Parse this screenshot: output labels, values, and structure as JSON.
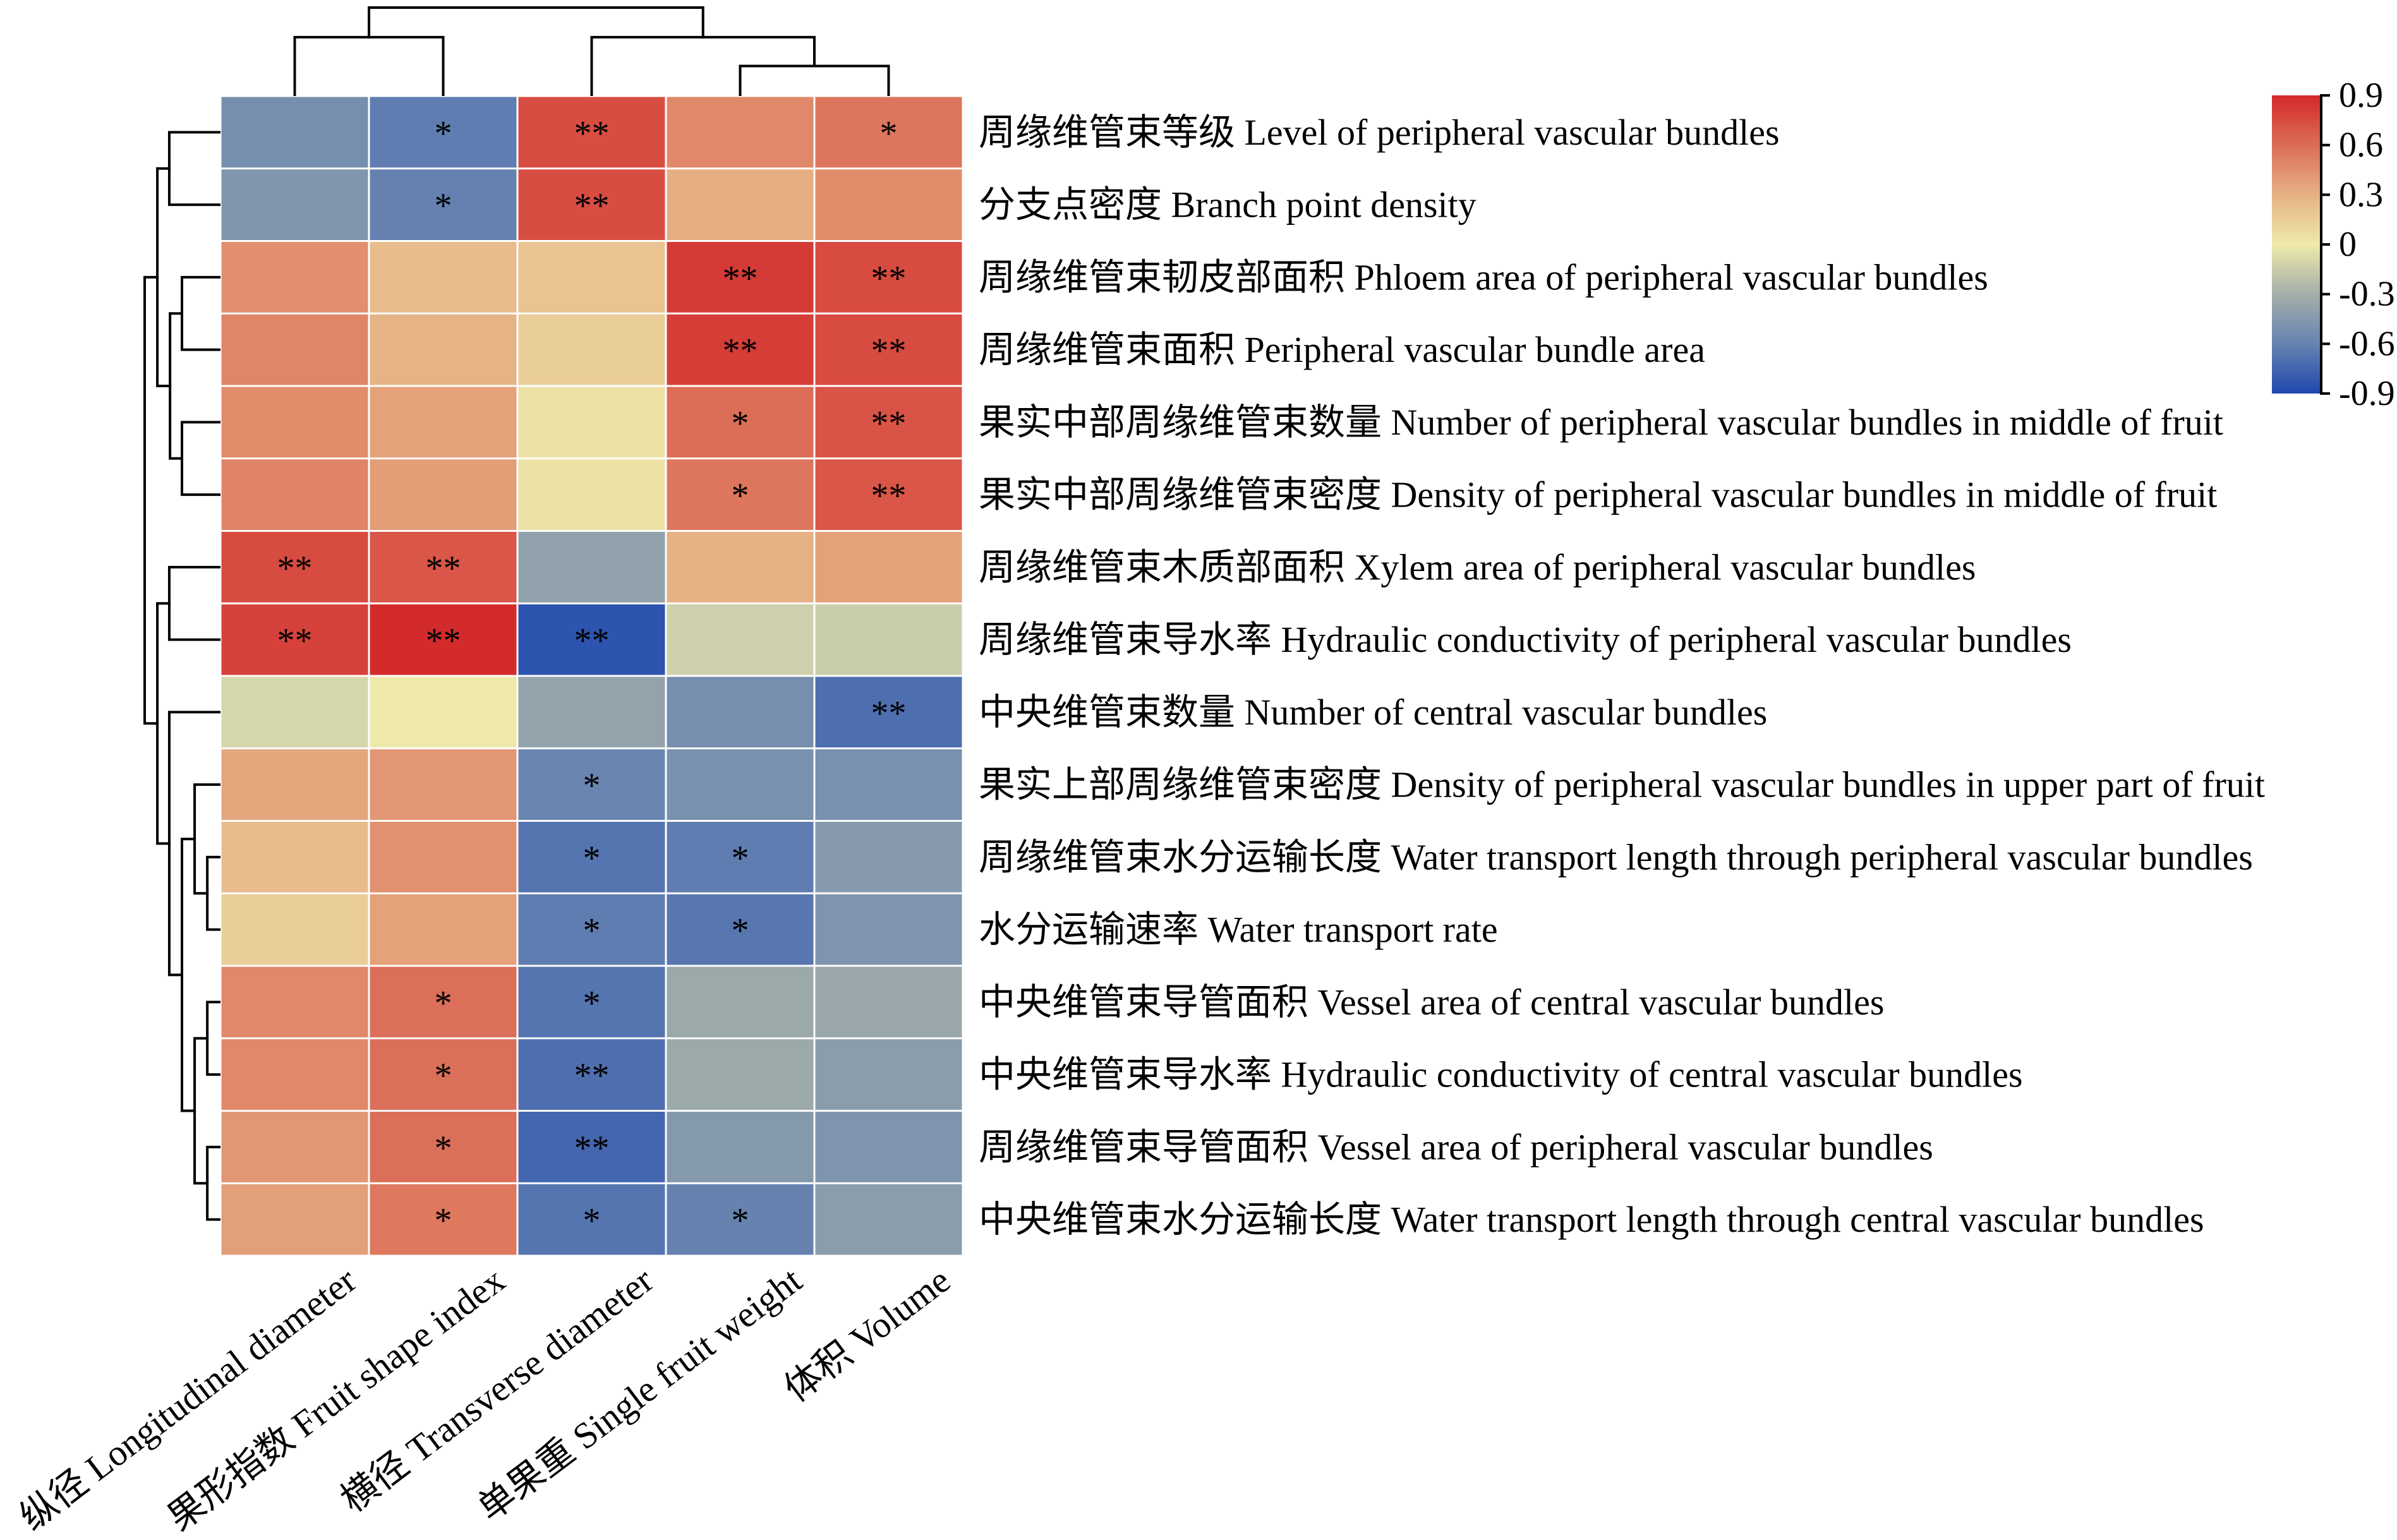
{
  "chart_data": {
    "type": "heatmap",
    "title": "",
    "xlabel": "",
    "ylabel": "",
    "rows": [
      "周缘维管束等级 Level of peripheral vascular bundles",
      "分支点密度 Branch point density",
      "周缘维管束韧皮部面积 Phloem area of peripheral vascular bundles",
      "周缘维管束面积 Peripheral vascular bundle area",
      "果实中部周缘维管束数量 Number of peripheral vascular bundles in middle of fruit",
      "果实中部周缘维管束密度 Density of peripheral vascular bundles in middle of fruit",
      "周缘维管束木质部面积 Xylem area of peripheral vascular bundles",
      "周缘维管束导水率 Hydraulic conductivity of peripheral vascular bundles",
      "中央维管束数量 Number of central vascular bundles",
      "果实上部周缘维管束密度 Density of peripheral vascular bundles in upper part of fruit",
      "周缘维管束水分运输长度 Water transport length through peripheral vascular bundles",
      "水分运输速率 Water transport rate",
      "中央维管束导管面积 Vessel area of central vascular bundles",
      "中央维管束导水率 Hydraulic conductivity of central vascular bundles",
      "周缘维管束导管面积 Vessel area of peripheral vascular bundles",
      "中央维管束水分运输长度 Water transport length through central vascular bundles"
    ],
    "columns": [
      "纵径 Longitudinal diameter",
      "果形指数 Fruit shape index",
      "横径 Transverse diameter",
      "单果重 Single fruit weight",
      "体积 Volume"
    ],
    "values": [
      [
        -0.52,
        -0.63,
        0.74,
        0.48,
        0.56
      ],
      [
        -0.47,
        -0.61,
        0.74,
        0.31,
        0.46
      ],
      [
        0.45,
        0.24,
        0.2,
        0.82,
        0.75
      ],
      [
        0.49,
        0.29,
        0.15,
        0.81,
        0.75
      ],
      [
        0.46,
        0.37,
        0.05,
        0.6,
        0.71
      ],
      [
        0.5,
        0.39,
        0.04,
        0.56,
        0.7
      ],
      [
        0.75,
        0.7,
        -0.39,
        0.3,
        0.37
      ],
      [
        0.79,
        0.89,
        -0.84,
        -0.13,
        -0.15
      ],
      [
        -0.1,
        0.01,
        -0.38,
        -0.52,
        -0.7
      ],
      [
        0.35,
        0.42,
        -0.58,
        -0.51,
        -0.51
      ],
      [
        0.24,
        0.44,
        -0.67,
        -0.63,
        -0.44
      ],
      [
        0.15,
        0.37,
        -0.63,
        -0.66,
        -0.48
      ],
      [
        0.48,
        0.59,
        -0.67,
        -0.34,
        -0.35
      ],
      [
        0.48,
        0.59,
        -0.7,
        -0.34,
        -0.42
      ],
      [
        0.42,
        0.59,
        -0.75,
        -0.45,
        -0.48
      ],
      [
        0.38,
        0.55,
        -0.67,
        -0.6,
        -0.42
      ]
    ],
    "significance": [
      [
        "",
        "*",
        "**",
        "",
        "*"
      ],
      [
        "",
        "*",
        "**",
        "",
        ""
      ],
      [
        "",
        "",
        "",
        "**",
        "**"
      ],
      [
        "",
        "",
        "",
        "**",
        "**"
      ],
      [
        "",
        "",
        "",
        "*",
        "**"
      ],
      [
        "",
        "",
        "",
        "*",
        "**"
      ],
      [
        "**",
        "**",
        "",
        "",
        ""
      ],
      [
        "**",
        "**",
        "**",
        "",
        ""
      ],
      [
        "",
        "",
        "",
        "",
        "**"
      ],
      [
        "",
        "",
        "*",
        "",
        ""
      ],
      [
        "",
        "",
        "*",
        "*",
        ""
      ],
      [
        "",
        "",
        "*",
        "*",
        ""
      ],
      [
        "",
        "*",
        "*",
        "",
        ""
      ],
      [
        "",
        "*",
        "**",
        "",
        ""
      ],
      [
        "",
        "*",
        "**",
        "",
        ""
      ],
      [
        "",
        "*",
        "*",
        "*",
        ""
      ]
    ],
    "colorbar": {
      "min": -0.9,
      "max": 0.9,
      "ticks": [
        0.9,
        0.6,
        0.3,
        0,
        -0.3,
        -0.6,
        -0.9
      ],
      "tick_labels": [
        "0.9",
        "0.6",
        "0.3",
        "0",
        "-0.3",
        "-0.6",
        "-0.9"
      ],
      "colors": [
        {
          "value": 0.9,
          "color": "#d3292a"
        },
        {
          "value": 0.6,
          "color": "#dc6d57"
        },
        {
          "value": 0.3,
          "color": "#e6b185"
        },
        {
          "value": 0.0,
          "color": "#eeeaab"
        },
        {
          "value": -0.3,
          "color": "#a4afaa"
        },
        {
          "value": -0.6,
          "color": "#6683b0"
        },
        {
          "value": -0.9,
          "color": "#1f48ae"
        }
      ],
      "placement": "top-right"
    },
    "row_dendrogram": {
      "height": 1.0,
      "children": [
        {
          "height": 0.83,
          "children": [
            {
              "height": 0.67,
              "children": [
                0,
                1
              ]
            },
            {
              "height": 0.66,
              "children": [
                {
                  "height": 0.5,
                  "children": [
                    2,
                    3
                  ]
                },
                {
                  "height": 0.5,
                  "children": [
                    4,
                    5
                  ]
                }
              ]
            }
          ]
        },
        {
          "height": 0.83,
          "children": [
            {
              "height": 0.67,
              "children": [
                6,
                7
              ]
            },
            {
              "height": 0.67,
              "children": [
                8,
                {
                  "height": 0.5,
                  "children": [
                    {
                      "height": 0.33,
                      "children": [
                        9,
                        {
                          "height": 0.16,
                          "children": [
                            10,
                            11
                          ]
                        }
                      ]
                    },
                    {
                      "height": 0.33,
                      "children": [
                        {
                          "height": 0.16,
                          "children": [
                            12,
                            13
                          ]
                        },
                        {
                          "height": 0.16,
                          "children": [
                            14,
                            15
                          ]
                        }
                      ]
                    }
                  ]
                }
              ]
            }
          ]
        }
      ]
    },
    "col_dendrogram": {
      "height": 1.0,
      "children": [
        {
          "height": 0.66,
          "children": [
            0,
            1
          ]
        },
        {
          "height": 0.66,
          "children": [
            2,
            {
              "height": 0.33,
              "children": [
                3,
                4
              ]
            }
          ]
        }
      ]
    }
  },
  "colors": {
    "background": "#ffffff",
    "dendrogram": "#000000",
    "cell_border": "#ffffff",
    "text": "#000000"
  }
}
